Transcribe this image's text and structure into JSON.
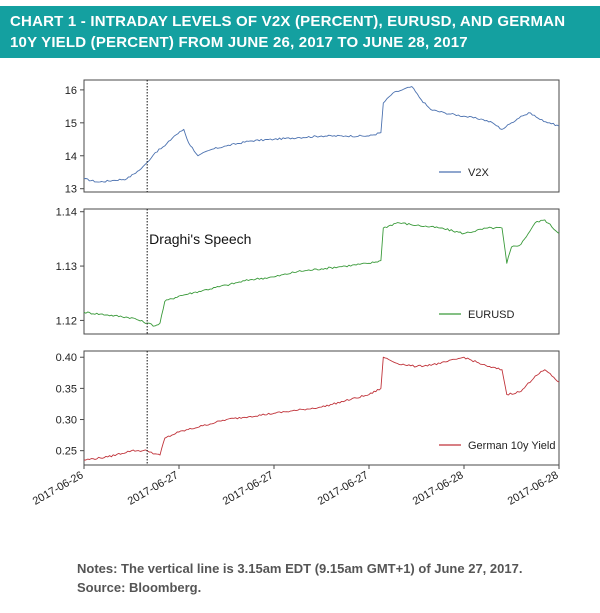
{
  "title": "CHART 1 - INTRADAY LEVELS OF V2X (PERCENT), EURUSD, AND GERMAN 10Y YIELD (PERCENT) FROM JUNE 26, 2017 TO JUNE 28, 2017",
  "title_lines": [
    "CHART 1 - INTRADAY LEVELS OF V2X (PERCENT), EURUSD, AND GERMAN",
    "10Y YIELD (PERCENT) FROM JUNE 26, 2017 TO JUNE 28, 2017"
  ],
  "colors": {
    "banner": "#14a0a0",
    "V2X": "#4c72b0",
    "EURUSD": "#3a9a3a",
    "German 10y Yield": "#c0333a"
  },
  "notes": {
    "line1": "Notes: The vertical line is 3.15am EDT (9.15am GMT+1) of June 27, 2017.",
    "line2": "Source: Bloomberg."
  },
  "chart_data": {
    "type": "line",
    "x_tick_labels": [
      "2017-06-26",
      "2017-06-27",
      "2017-06-27",
      "2017-06-27",
      "2017-06-28",
      "2017-06-28"
    ],
    "x_tick_fraction": [
      0.0,
      0.2,
      0.4,
      0.6,
      0.8,
      1.0
    ],
    "event_line": {
      "x_fraction": 0.133,
      "label": "Draghi's Speech",
      "style": "dotted"
    },
    "panels": [
      {
        "series": "V2X",
        "ylim": [
          12.9,
          16.3
        ],
        "yticks": [
          13,
          14,
          15,
          16
        ],
        "ytick_labels": [
          "13",
          "14",
          "15",
          "16"
        ],
        "legend": "bottom-right",
        "x": [
          0.0,
          0.03,
          0.06,
          0.09,
          0.12,
          0.133,
          0.15,
          0.17,
          0.19,
          0.21,
          0.22,
          0.24,
          0.27,
          0.3,
          0.35,
          0.4,
          0.45,
          0.5,
          0.55,
          0.6,
          0.625,
          0.63,
          0.65,
          0.67,
          0.69,
          0.71,
          0.73,
          0.76,
          0.8,
          0.84,
          0.86,
          0.88,
          0.9,
          0.92,
          0.94,
          0.96,
          0.98,
          1.0
        ],
        "y": [
          13.3,
          13.2,
          13.25,
          13.3,
          13.6,
          13.8,
          14.1,
          14.3,
          14.6,
          14.8,
          14.4,
          14.0,
          14.2,
          14.3,
          14.45,
          14.5,
          14.55,
          14.6,
          14.6,
          14.6,
          14.7,
          15.6,
          15.9,
          16.0,
          16.1,
          15.7,
          15.4,
          15.3,
          15.2,
          15.1,
          15.0,
          14.8,
          15.0,
          15.2,
          15.3,
          15.1,
          15.0,
          14.9
        ]
      },
      {
        "series": "EURUSD",
        "ylim": [
          1.1175,
          1.1405
        ],
        "yticks": [
          1.12,
          1.13,
          1.14
        ],
        "ytick_labels": [
          "1.12",
          "1.13",
          "1.14"
        ],
        "legend": "bottom-right",
        "x": [
          0.0,
          0.05,
          0.1,
          0.133,
          0.15,
          0.16,
          0.17,
          0.2,
          0.25,
          0.3,
          0.35,
          0.4,
          0.45,
          0.5,
          0.55,
          0.6,
          0.625,
          0.63,
          0.66,
          0.7,
          0.75,
          0.8,
          0.85,
          0.88,
          0.89,
          0.9,
          0.92,
          0.95,
          0.97,
          1.0
        ],
        "y": [
          1.1215,
          1.121,
          1.1205,
          1.1195,
          1.119,
          1.1195,
          1.1235,
          1.1245,
          1.1255,
          1.1265,
          1.1275,
          1.128,
          1.129,
          1.1295,
          1.13,
          1.1305,
          1.131,
          1.137,
          1.138,
          1.1375,
          1.137,
          1.136,
          1.137,
          1.137,
          1.1305,
          1.1335,
          1.134,
          1.138,
          1.1385,
          1.136
        ]
      },
      {
        "series": "German 10y Yield",
        "ylim": [
          0.227,
          0.41
        ],
        "yticks": [
          0.25,
          0.3,
          0.35,
          0.4
        ],
        "ytick_labels": [
          "0.25",
          "0.30",
          "0.35",
          "0.40"
        ],
        "legend": "bottom-right",
        "x": [
          0.0,
          0.05,
          0.1,
          0.133,
          0.15,
          0.16,
          0.17,
          0.2,
          0.25,
          0.3,
          0.35,
          0.4,
          0.45,
          0.5,
          0.55,
          0.6,
          0.625,
          0.63,
          0.66,
          0.7,
          0.75,
          0.8,
          0.85,
          0.88,
          0.89,
          0.92,
          0.95,
          0.97,
          1.0
        ],
        "y": [
          0.235,
          0.24,
          0.25,
          0.25,
          0.245,
          0.243,
          0.27,
          0.28,
          0.29,
          0.3,
          0.305,
          0.31,
          0.315,
          0.32,
          0.33,
          0.34,
          0.35,
          0.4,
          0.39,
          0.385,
          0.39,
          0.4,
          0.385,
          0.38,
          0.34,
          0.345,
          0.37,
          0.38,
          0.36
        ]
      }
    ]
  }
}
